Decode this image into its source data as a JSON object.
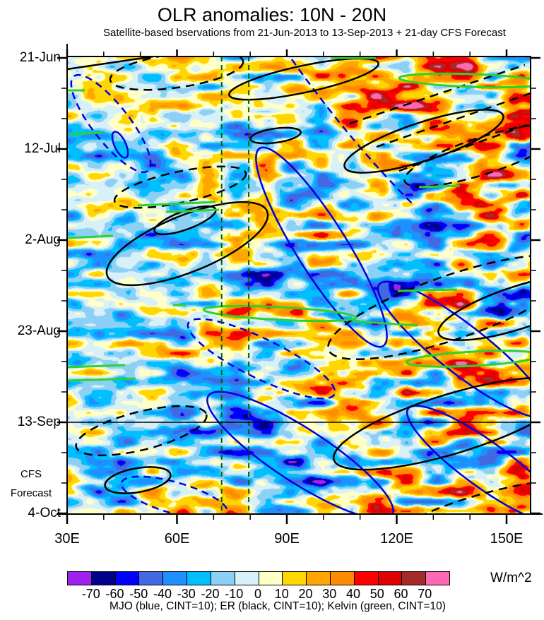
{
  "chart": {
    "title": "OLR anomalies: 10N - 20N",
    "subtitle": "Satellite-based bservations from 21-Jun-2013 to 13-Sep-2013 + 21-day CFS Forecast",
    "caption": "MJO (blue, CINT=10); ER (black, CINT=10); Kelvin (green, CINT=10)",
    "unit_label": "W/m^2",
    "forecast_label_line1": "CFS",
    "forecast_label_line2": "Forecast"
  },
  "chart_data": {
    "type": "heatmap",
    "title": "OLR anomalies: 10N - 20N",
    "subtitle": "Satellite-based bservations from 21-Jun-2013 to 13-Sep-2013 + 21-day CFS Forecast",
    "field": "OLR anomaly",
    "unit": "W/m^2",
    "latitude_band": "10N - 20N",
    "x_axis": {
      "kind": "longitude",
      "major_ticks": [
        {
          "label": "30E",
          "lon": 30
        },
        {
          "label": "60E",
          "lon": 60
        },
        {
          "label": "90E",
          "lon": 90
        },
        {
          "label": "120E",
          "lon": 120
        },
        {
          "label": "150E",
          "lon": 150
        }
      ],
      "minor_tick_lons": [
        40,
        50,
        70,
        80,
        100,
        110,
        130,
        140
      ],
      "range_lon": [
        30,
        156.6
      ]
    },
    "y_axis": {
      "kind": "time",
      "direction": "downward",
      "major_ticks": [
        {
          "label": "21-Jun",
          "day": 0
        },
        {
          "label": "12-Jul",
          "day": 21
        },
        {
          "label": "2-Aug",
          "day": 42
        },
        {
          "label": "23-Aug",
          "day": 63
        },
        {
          "label": "13-Sep",
          "day": 84
        },
        {
          "label": "4-Oct",
          "day": 105
        }
      ],
      "minor_tick_days": [
        7,
        14,
        28,
        35,
        49,
        56,
        70,
        77,
        91,
        98
      ],
      "range": [
        "21-Jun-2013",
        "4-Oct-2013"
      ],
      "forecast_start": {
        "label": "13-Sep",
        "day": 84
      },
      "forecast_annotation": [
        "CFS",
        "Forecast"
      ]
    },
    "colorbar": {
      "levels": [
        -70,
        -60,
        -50,
        -40,
        -30,
        -20,
        -10,
        0,
        10,
        20,
        30,
        40,
        50,
        60,
        70
      ],
      "colors": [
        "#A020F0",
        "#00008B",
        "#0000FF",
        "#4169E1",
        "#1E90FF",
        "#00BFFF",
        "#8CD0F5",
        "#D8F0F8",
        "#FFFFC8",
        "#FFD700",
        "#FFA500",
        "#FF8C00",
        "#FF0000",
        "#E00000",
        "#A52A2A",
        "#FF69B4"
      ],
      "unit": "W/m^2"
    },
    "overlays": [
      {
        "name": "MJO",
        "color": "blue",
        "cint": 10
      },
      {
        "name": "ER",
        "color": "black",
        "cint": 10
      },
      {
        "name": "Kelvin",
        "color": "green",
        "cint": 10
      }
    ],
    "reference_lines": {
      "horizontal_forecast_start_day": 84,
      "vertical_dashed_lons": [
        72.2,
        79.6
      ]
    }
  }
}
